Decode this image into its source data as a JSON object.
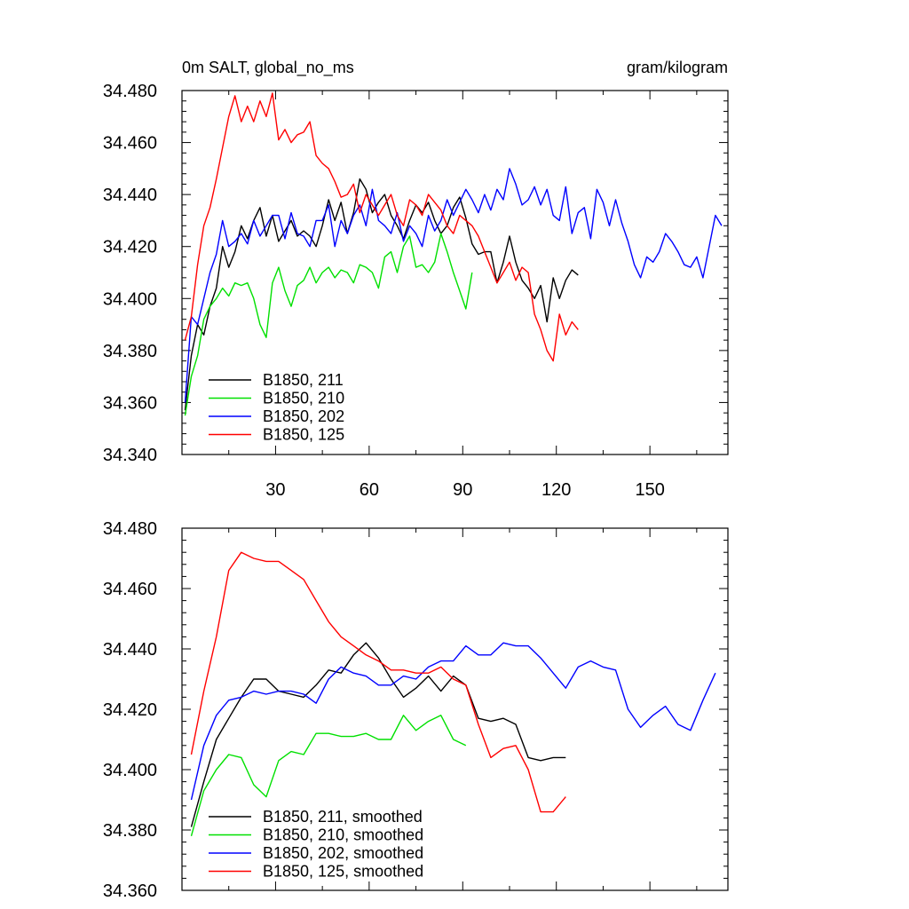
{
  "chart_data": [
    {
      "type": "line",
      "title": "0m SALT, global_no_ms",
      "units": "gram/kilogram",
      "xlim": [
        0,
        175
      ],
      "ylim": [
        34.34,
        34.48
      ],
      "xticks": [
        "30",
        "60",
        "90",
        "120",
        "150"
      ],
      "yticks": [
        "34.340",
        "34.360",
        "34.380",
        "34.400",
        "34.420",
        "34.440",
        "34.460",
        "34.480"
      ],
      "series": [
        {
          "name": "B1850, 211",
          "color": "#000000",
          "x": [
            1,
            3,
            5,
            7,
            9,
            11,
            13,
            15,
            17,
            19,
            21,
            23,
            25,
            27,
            29,
            31,
            33,
            35,
            37,
            39,
            41,
            43,
            45,
            47,
            49,
            51,
            53,
            55,
            57,
            59,
            61,
            63,
            65,
            67,
            69,
            71,
            73,
            75,
            77,
            79,
            81,
            83,
            85,
            87,
            89,
            91,
            93,
            95,
            97,
            99,
            101,
            103,
            105,
            107,
            109,
            111,
            113,
            115,
            117,
            119,
            121,
            123,
            125,
            127
          ],
          "values": [
            34.357,
            34.378,
            34.39,
            34.386,
            34.397,
            34.404,
            34.42,
            34.412,
            34.418,
            34.428,
            34.423,
            34.43,
            34.435,
            34.424,
            34.432,
            34.422,
            34.426,
            34.43,
            34.424,
            34.426,
            34.424,
            34.42,
            34.428,
            34.438,
            34.43,
            34.437,
            34.425,
            34.433,
            34.446,
            34.442,
            34.433,
            34.437,
            34.44,
            34.432,
            34.428,
            34.423,
            34.43,
            34.436,
            34.433,
            34.437,
            34.43,
            34.425,
            34.428,
            34.435,
            34.439,
            34.431,
            34.421,
            34.417,
            34.418,
            34.418,
            34.406,
            34.414,
            34.424,
            34.414,
            34.407,
            34.404,
            34.4,
            34.405,
            34.391,
            34.408,
            34.4,
            34.407,
            34.411,
            34.409
          ]
        },
        {
          "name": "B1850, 210",
          "color": "#00e000",
          "x": [
            1,
            3,
            5,
            7,
            9,
            11,
            13,
            15,
            17,
            19,
            21,
            23,
            25,
            27,
            29,
            31,
            33,
            35,
            37,
            39,
            41,
            43,
            45,
            47,
            49,
            51,
            53,
            55,
            57,
            59,
            61,
            63,
            65,
            67,
            69,
            71,
            73,
            75,
            77,
            79,
            81,
            83,
            85,
            87,
            89,
            91,
            93
          ],
          "values": [
            34.355,
            34.37,
            34.378,
            34.392,
            34.397,
            34.4,
            34.404,
            34.401,
            34.406,
            34.405,
            34.406,
            34.4,
            34.39,
            34.385,
            34.406,
            34.412,
            34.403,
            34.397,
            34.405,
            34.407,
            34.412,
            34.406,
            34.41,
            34.412,
            34.408,
            34.411,
            34.41,
            34.406,
            34.413,
            34.412,
            34.41,
            34.404,
            34.416,
            34.418,
            34.41,
            34.42,
            34.424,
            34.412,
            34.413,
            34.41,
            34.414,
            34.425,
            34.418,
            34.41,
            34.403,
            34.396,
            34.41
          ]
        },
        {
          "name": "B1850, 202",
          "color": "#0000ff",
          "x": [
            1,
            3,
            5,
            7,
            9,
            11,
            13,
            15,
            17,
            19,
            21,
            23,
            25,
            27,
            29,
            31,
            33,
            35,
            37,
            39,
            41,
            43,
            45,
            47,
            49,
            51,
            53,
            55,
            57,
            59,
            61,
            63,
            65,
            67,
            69,
            71,
            73,
            75,
            77,
            79,
            81,
            83,
            85,
            87,
            89,
            91,
            93,
            95,
            97,
            99,
            101,
            103,
            105,
            107,
            109,
            111,
            113,
            115,
            117,
            119,
            121,
            123,
            125,
            127,
            129,
            131,
            133,
            135,
            137,
            139,
            141,
            143,
            145,
            147,
            149,
            151,
            153,
            155,
            157,
            159,
            161,
            163,
            165,
            167,
            169,
            171,
            173
          ],
          "values": [
            34.36,
            34.393,
            34.39,
            34.4,
            34.41,
            34.417,
            34.43,
            34.42,
            34.422,
            34.425,
            34.421,
            34.43,
            34.424,
            34.428,
            34.432,
            34.432,
            34.423,
            34.433,
            34.425,
            34.424,
            34.42,
            34.43,
            34.43,
            34.436,
            34.42,
            34.43,
            34.425,
            34.432,
            34.436,
            34.428,
            34.442,
            34.43,
            34.428,
            34.425,
            34.433,
            34.422,
            34.428,
            34.425,
            34.42,
            34.432,
            34.426,
            34.43,
            34.438,
            34.432,
            34.437,
            34.442,
            34.438,
            34.433,
            34.44,
            34.434,
            34.442,
            34.438,
            34.45,
            34.444,
            34.436,
            34.438,
            34.443,
            34.436,
            34.442,
            34.432,
            34.43,
            34.443,
            34.425,
            34.433,
            34.435,
            34.423,
            34.442,
            34.437,
            34.428,
            34.438,
            34.429,
            34.422,
            34.413,
            34.408,
            34.416,
            34.414,
            34.418,
            34.425,
            34.422,
            34.418,
            34.413,
            34.412,
            34.416,
            34.408,
            34.42,
            34.432,
            34.428
          ]
        },
        {
          "name": "B1850, 125",
          "color": "#ff0000",
          "x": [
            1,
            3,
            5,
            7,
            9,
            11,
            13,
            15,
            17,
            19,
            21,
            23,
            25,
            27,
            29,
            31,
            33,
            35,
            37,
            39,
            41,
            43,
            45,
            47,
            49,
            51,
            53,
            55,
            57,
            59,
            61,
            63,
            65,
            67,
            69,
            71,
            73,
            75,
            77,
            79,
            81,
            83,
            85,
            87,
            89,
            91,
            93,
            95,
            97,
            99,
            101,
            103,
            105,
            107,
            109,
            111,
            113,
            115,
            117,
            119,
            121,
            123,
            125,
            127
          ],
          "values": [
            34.384,
            34.393,
            34.413,
            34.428,
            34.435,
            34.446,
            34.458,
            34.47,
            34.478,
            34.468,
            34.474,
            34.468,
            34.476,
            34.47,
            34.479,
            34.461,
            34.465,
            34.46,
            34.463,
            34.464,
            34.468,
            34.455,
            34.452,
            34.45,
            34.445,
            34.439,
            34.44,
            34.444,
            34.433,
            34.44,
            34.436,
            34.432,
            34.436,
            34.44,
            34.432,
            34.428,
            34.438,
            34.436,
            34.432,
            34.44,
            34.437,
            34.434,
            34.428,
            34.425,
            34.432,
            34.43,
            34.428,
            34.424,
            34.418,
            34.412,
            34.406,
            34.41,
            34.414,
            34.407,
            34.412,
            34.41,
            34.394,
            34.388,
            34.38,
            34.376,
            34.394,
            34.386,
            34.391,
            34.388
          ]
        }
      ]
    },
    {
      "type": "line",
      "xlim": [
        0,
        175
      ],
      "ylim": [
        34.36,
        34.48
      ],
      "yticks": [
        "34.360",
        "34.380",
        "34.400",
        "34.420",
        "34.440",
        "34.460",
        "34.480"
      ],
      "series": [
        {
          "name": "B1850, 211, smoothed",
          "color": "#000000",
          "x": [
            3,
            7,
            11,
            15,
            19,
            23,
            27,
            31,
            35,
            39,
            43,
            47,
            51,
            55,
            59,
            63,
            67,
            71,
            75,
            79,
            83,
            87,
            91,
            95,
            99,
            103,
            107,
            111,
            115,
            119,
            123
          ],
          "values": [
            34.381,
            34.396,
            34.41,
            34.417,
            34.424,
            34.43,
            34.43,
            34.426,
            34.425,
            34.424,
            34.428,
            34.433,
            34.432,
            34.438,
            34.442,
            34.437,
            34.43,
            34.424,
            34.427,
            34.431,
            34.426,
            34.431,
            34.428,
            34.417,
            34.416,
            34.417,
            34.415,
            34.404,
            34.403,
            34.404,
            34.404
          ]
        },
        {
          "name": "B1850, 210, smoothed",
          "color": "#00e000",
          "x": [
            3,
            7,
            11,
            15,
            19,
            23,
            27,
            31,
            35,
            39,
            43,
            47,
            51,
            55,
            59,
            63,
            67,
            71,
            75,
            79,
            83,
            87,
            91
          ],
          "values": [
            34.378,
            34.393,
            34.4,
            34.405,
            34.404,
            34.395,
            34.391,
            34.403,
            34.406,
            34.405,
            34.412,
            34.412,
            34.411,
            34.411,
            34.412,
            34.41,
            34.41,
            34.418,
            34.413,
            34.416,
            34.418,
            34.41,
            34.408
          ]
        },
        {
          "name": "B1850, 202, smoothed",
          "color": "#0000ff",
          "x": [
            3,
            7,
            11,
            15,
            19,
            23,
            27,
            31,
            35,
            39,
            43,
            47,
            51,
            55,
            59,
            63,
            67,
            71,
            75,
            79,
            83,
            87,
            91,
            95,
            99,
            103,
            107,
            111,
            115,
            119,
            123,
            127,
            131,
            135,
            139,
            143,
            147,
            151,
            155,
            159,
            163,
            167,
            171
          ],
          "values": [
            34.39,
            34.408,
            34.418,
            34.423,
            34.424,
            34.426,
            34.425,
            34.426,
            34.426,
            34.425,
            34.422,
            34.43,
            34.434,
            34.432,
            34.431,
            34.428,
            34.428,
            34.431,
            34.43,
            34.434,
            34.436,
            34.436,
            34.441,
            34.438,
            34.438,
            34.442,
            34.441,
            34.441,
            34.437,
            34.432,
            34.427,
            34.434,
            34.436,
            34.434,
            34.433,
            34.42,
            34.414,
            34.418,
            34.421,
            34.415,
            34.413,
            34.423,
            34.432
          ]
        },
        {
          "name": "B1850, 125, smoothed",
          "color": "#ff0000",
          "x": [
            3,
            7,
            11,
            15,
            19,
            23,
            27,
            31,
            35,
            39,
            43,
            47,
            51,
            55,
            59,
            63,
            67,
            71,
            75,
            79,
            83,
            87,
            91,
            95,
            99,
            103,
            107,
            111,
            115,
            119,
            123
          ],
          "values": [
            34.405,
            34.426,
            34.444,
            34.466,
            34.472,
            34.47,
            34.469,
            34.469,
            34.466,
            34.463,
            34.456,
            34.449,
            34.444,
            34.441,
            34.438,
            34.436,
            34.433,
            34.433,
            34.432,
            34.432,
            34.434,
            34.43,
            34.428,
            34.415,
            34.404,
            34.407,
            34.408,
            34.4,
            34.386,
            34.386,
            34.391
          ]
        }
      ]
    }
  ]
}
